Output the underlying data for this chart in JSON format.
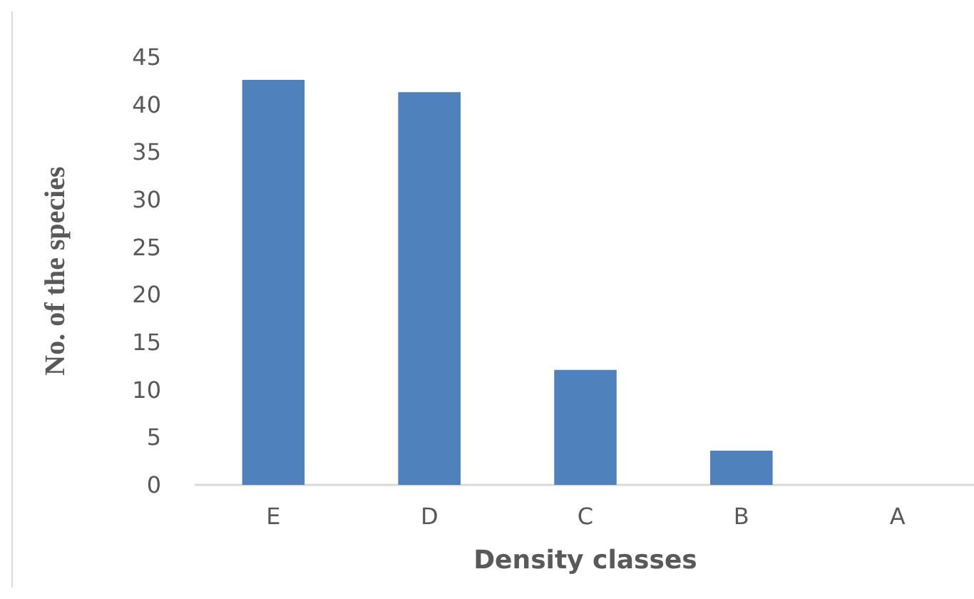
{
  "chart_data": {
    "type": "bar",
    "xlabel": "Density classes",
    "ylabel": "No. of the species",
    "categories": [
      "E",
      "D",
      "C",
      "B",
      "A"
    ],
    "values": [
      42.6,
      41.3,
      12.1,
      3.6,
      0
    ],
    "color": "#4f81bd",
    "ylim": [
      0,
      45
    ],
    "yticks": [
      0,
      5,
      10,
      15,
      20,
      25,
      30,
      35,
      40,
      45
    ],
    "grid": false
  }
}
